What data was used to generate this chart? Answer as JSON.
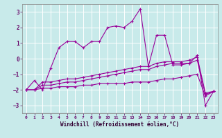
{
  "xlabel": "Windchill (Refroidissement éolien,°C)",
  "bg_color": "#c8eaea",
  "grid_color": "#ffffff",
  "line_color": "#990099",
  "xlim": [
    -0.5,
    23.5
  ],
  "ylim": [
    -3.5,
    3.5
  ],
  "yticks": [
    -3,
    -2,
    -1,
    0,
    1,
    2,
    3
  ],
  "xticks": [
    0,
    1,
    2,
    3,
    4,
    5,
    6,
    7,
    8,
    9,
    10,
    11,
    12,
    13,
    14,
    15,
    16,
    17,
    18,
    19,
    20,
    21,
    22,
    23
  ],
  "series1_x": [
    0,
    1,
    2,
    3,
    4,
    5,
    6,
    7,
    8,
    9,
    10,
    11,
    12,
    13,
    14,
    15,
    16,
    17,
    18,
    19,
    20,
    21,
    22,
    23
  ],
  "series1_y": [
    -2.0,
    -1.4,
    -2.0,
    -0.6,
    0.7,
    1.1,
    1.1,
    0.7,
    1.1,
    1.1,
    2.0,
    2.1,
    2.0,
    2.4,
    3.2,
    -0.5,
    1.5,
    1.5,
    -0.4,
    -0.4,
    -0.3,
    0.2,
    -3.0,
    -2.1
  ],
  "series2_x": [
    0,
    1,
    2,
    3,
    4,
    5,
    6,
    7,
    8,
    9,
    10,
    11,
    12,
    13,
    14,
    15,
    16,
    17,
    18,
    19,
    20,
    21,
    22,
    23
  ],
  "series2_y": [
    -2.0,
    -2.0,
    -1.5,
    -1.5,
    -1.4,
    -1.3,
    -1.3,
    -1.2,
    -1.1,
    -1.0,
    -0.9,
    -0.8,
    -0.7,
    -0.6,
    -0.5,
    -0.5,
    -0.3,
    -0.2,
    -0.2,
    -0.2,
    -0.1,
    0.1,
    -2.2,
    -2.1
  ],
  "series3_x": [
    0,
    1,
    2,
    3,
    4,
    5,
    6,
    7,
    8,
    9,
    10,
    11,
    12,
    13,
    14,
    15,
    16,
    17,
    18,
    19,
    20,
    21,
    22,
    23
  ],
  "series3_y": [
    -2.0,
    -2.0,
    -1.7,
    -1.7,
    -1.6,
    -1.5,
    -1.5,
    -1.4,
    -1.3,
    -1.2,
    -1.1,
    -1.0,
    -0.9,
    -0.8,
    -0.7,
    -0.7,
    -0.5,
    -0.4,
    -0.3,
    -0.3,
    -0.3,
    -0.1,
    -2.3,
    -2.1
  ],
  "series4_x": [
    0,
    1,
    2,
    3,
    4,
    5,
    6,
    7,
    8,
    9,
    10,
    11,
    12,
    13,
    14,
    15,
    16,
    17,
    18,
    19,
    20,
    21,
    22,
    23
  ],
  "series4_y": [
    -2.0,
    -2.0,
    -1.9,
    -1.9,
    -1.8,
    -1.8,
    -1.8,
    -1.7,
    -1.7,
    -1.6,
    -1.6,
    -1.6,
    -1.6,
    -1.5,
    -1.5,
    -1.5,
    -1.4,
    -1.3,
    -1.3,
    -1.2,
    -1.1,
    -1.0,
    -2.4,
    -2.1
  ]
}
